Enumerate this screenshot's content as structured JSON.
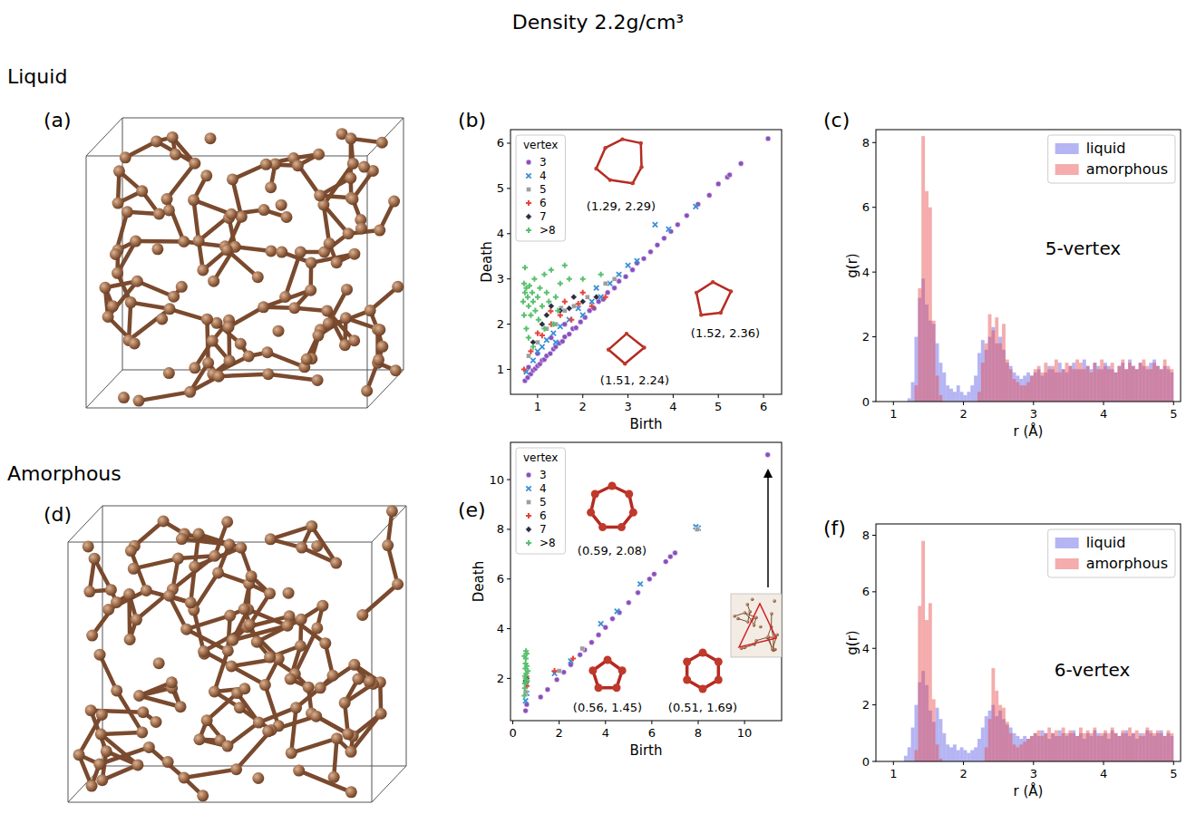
{
  "title": "Density 2.2g/cm³",
  "row_labels": [
    "Liquid",
    "Amorphous"
  ],
  "structure_panels": [
    "(a)",
    "(d)"
  ],
  "chart_data": [
    {
      "panel": "(b)",
      "type": "scatter",
      "x_label": "Birth",
      "y_label": "Death",
      "xlim": [
        0.4,
        6.4
      ],
      "ylim": [
        0.45,
        6.3
      ],
      "xticks": [
        1,
        2,
        3,
        4,
        5,
        6
      ],
      "yticks": [
        1,
        2,
        3,
        4,
        5,
        6
      ],
      "legend": "upper left",
      "legend_title": "vertex",
      "annotations": [
        "(1.29, 2.29)",
        "(1.52, 2.36)",
        "(1.51, 2.24)"
      ],
      "series": [
        {
          "name": "3",
          "color": "#8a4fbe",
          "marker": "circle",
          "x": [
            0.72,
            0.78,
            0.85,
            0.9,
            0.95,
            1.0,
            1.05,
            1.1,
            1.15,
            1.2,
            1.28,
            1.35,
            1.4,
            1.48,
            1.55,
            1.6,
            1.7,
            1.78,
            1.85,
            1.95,
            2.05,
            2.15,
            2.25,
            2.35,
            2.45,
            2.55,
            2.7,
            2.8,
            2.95,
            3.1,
            3.2,
            3.35,
            3.5,
            3.65,
            3.8,
            3.95,
            4.1,
            4.3,
            4.55,
            4.8,
            5.0,
            5.2,
            5.25,
            5.5,
            6.1,
            0.8,
            1.0,
            1.3,
            1.6
          ],
          "values": [
            0.75,
            0.82,
            0.9,
            0.98,
            1.02,
            1.08,
            1.12,
            1.2,
            1.22,
            1.3,
            1.35,
            1.45,
            1.5,
            1.58,
            1.62,
            1.72,
            1.78,
            1.9,
            1.92,
            2.05,
            2.15,
            2.3,
            2.35,
            2.5,
            2.55,
            2.7,
            2.8,
            2.95,
            3.05,
            3.2,
            3.35,
            3.45,
            3.6,
            3.75,
            3.9,
            4.05,
            4.2,
            4.4,
            4.65,
            4.85,
            5.1,
            5.25,
            5.3,
            5.55,
            6.1,
            1.05,
            1.35,
            1.7,
            2.0
          ]
        },
        {
          "name": "4",
          "color": "#3a8fd8",
          "marker": "x",
          "x": [
            0.75,
            0.9,
            1.0,
            1.1,
            1.2,
            1.35,
            1.5,
            1.7,
            1.9,
            2.0,
            2.2,
            2.4,
            2.6,
            2.8,
            3.0,
            3.2,
            3.6,
            3.9,
            4.5,
            2.3,
            1.4
          ],
          "values": [
            0.95,
            1.2,
            1.4,
            1.5,
            1.65,
            1.8,
            1.95,
            2.1,
            2.35,
            2.2,
            2.5,
            2.6,
            2.9,
            3.1,
            3.3,
            3.4,
            4.2,
            4.1,
            4.6,
            2.8,
            1.6
          ]
        },
        {
          "name": "5",
          "color": "#9e9e9e",
          "marker": "square",
          "x": [
            0.8,
            1.0,
            1.2,
            1.52,
            1.6,
            1.8,
            2.1,
            2.5,
            1.4,
            2.7
          ],
          "values": [
            1.3,
            1.6,
            1.9,
            2.36,
            2.3,
            2.4,
            2.6,
            2.9,
            2.0,
            3.0
          ]
        },
        {
          "name": "6",
          "color": "#e5443a",
          "marker": "plus",
          "x": [
            0.7,
            0.85,
            1.0,
            1.1,
            1.3,
            1.5,
            1.6,
            1.75,
            1.9,
            2.0,
            2.2,
            2.5,
            1.29
          ],
          "values": [
            1.0,
            1.4,
            1.8,
            1.75,
            2.0,
            2.2,
            2.5,
            2.1,
            2.45,
            2.7,
            2.4,
            2.6,
            2.29
          ]
        },
        {
          "name": "7",
          "color": "#2c2c44",
          "marker": "diamond",
          "x": [
            1.1,
            1.3,
            1.5,
            1.7,
            1.8,
            2.0,
            2.3,
            0.9,
            1.2
          ],
          "values": [
            2.0,
            2.4,
            2.3,
            2.35,
            2.6,
            2.5,
            2.6,
            1.6,
            2.2
          ]
        },
        {
          "name": ">8",
          "color": "#58c06e",
          "marker": "plus",
          "x": [
            0.68,
            0.7,
            0.72,
            0.75,
            0.78,
            0.8,
            0.82,
            0.85,
            0.88,
            0.9,
            0.93,
            0.95,
            1.0,
            1.02,
            1.05,
            1.1,
            1.15,
            1.2,
            1.25,
            1.3,
            1.35,
            1.4,
            1.5,
            1.6,
            1.7,
            0.75,
            0.7,
            0.8,
            0.9,
            0.72,
            1.15,
            1.45,
            2.0,
            2.4
          ],
          "values": [
            2.5,
            2.9,
            2.7,
            2.8,
            2.6,
            2.4,
            2.85,
            2.2,
            2.7,
            2.5,
            3.0,
            2.3,
            2.6,
            2.1,
            2.8,
            2.4,
            3.1,
            2.7,
            2.5,
            3.2,
            2.0,
            2.6,
            2.9,
            3.3,
            3.0,
            1.9,
            2.2,
            1.7,
            1.5,
            3.25,
            1.9,
            2.3,
            3.0,
            3.1
          ]
        }
      ]
    },
    {
      "panel": "(c)",
      "type": "histogram",
      "title": "5-vertex",
      "x_label": "r (Å)",
      "y_label": "g(r)",
      "xlim": [
        0.75,
        5.1
      ],
      "ylim": [
        0,
        8.4
      ],
      "xticks": [
        1,
        2,
        3,
        4,
        5
      ],
      "yticks": [
        0,
        2,
        4,
        6,
        8
      ],
      "legend": "upper right",
      "bins": [
        1,
        1.05,
        1.1,
        1.15,
        1.2,
        1.25,
        1.3,
        1.35,
        1.4,
        1.45,
        1.5,
        1.55,
        1.6,
        1.65,
        1.7,
        1.75,
        1.8,
        1.85,
        1.9,
        1.95,
        2,
        2.05,
        2.1,
        2.15,
        2.2,
        2.25,
        2.3,
        2.35,
        2.4,
        2.45,
        2.5,
        2.55,
        2.6,
        2.65,
        2.7,
        2.75,
        2.8,
        2.85,
        2.9,
        2.95,
        3,
        3.05,
        3.1,
        3.15,
        3.2,
        3.25,
        3.3,
        3.35,
        3.4,
        3.45,
        3.5,
        3.55,
        3.6,
        3.65,
        3.7,
        3.75,
        3.8,
        3.85,
        3.9,
        3.95,
        4,
        4.05,
        4.1,
        4.15,
        4.2,
        4.25,
        4.3,
        4.35,
        4.4,
        4.45,
        4.5,
        4.55,
        4.6,
        4.65,
        4.7,
        4.75,
        4.8,
        4.85,
        4.9,
        4.95,
        5
      ],
      "series": [
        {
          "name": "liquid",
          "color": "#5a5ae6",
          "values": [
            0,
            0,
            0,
            0,
            0.1,
            0.6,
            2.0,
            3.2,
            3.8,
            3.0,
            2.5,
            2.4,
            1.8,
            1.2,
            0.9,
            0.5,
            0.4,
            0.3,
            0.5,
            0.3,
            0.2,
            0.3,
            0.5,
            0.8,
            1.5,
            1.9,
            1.6,
            2.0,
            2.3,
            1.8,
            2.0,
            1.6,
            1.2,
            1.1,
            0.9,
            0.8,
            0.7,
            0.8,
            0.9,
            0.8,
            0.9,
            1.0,
            0.8,
            0.9,
            1.1,
            1.0,
            0.9,
            1.2,
            1.0,
            0.9,
            1.1,
            1.2,
            1.0,
            1.0,
            1.3,
            1.1,
            1.0,
            1.2,
            1.1,
            1.0,
            1.2,
            1.1,
            1.0,
            0.9,
            1.1,
            1.2,
            1.0,
            1.3,
            1.1,
            1.0,
            1.2,
            1.1,
            1.0,
            1.2,
            1.3,
            1.1,
            1.0,
            1.1,
            1.0,
            0.9
          ]
        },
        {
          "name": "amorphous",
          "color": "#e84848",
          "values": [
            0,
            0,
            0,
            0,
            0,
            0,
            0.5,
            3.5,
            8.2,
            6.5,
            6.0,
            2.5,
            0.8,
            0.2,
            0,
            0,
            0,
            0,
            0,
            0,
            0,
            0,
            0,
            0,
            0.3,
            1.2,
            1.8,
            2.7,
            2.2,
            2.6,
            1.8,
            2.4,
            1.3,
            1.0,
            0.7,
            0.6,
            0.5,
            0.5,
            0.6,
            0.8,
            1.0,
            1.1,
            0.9,
            1.2,
            1.0,
            1.1,
            1.3,
            0.9,
            1.0,
            1.2,
            1.1,
            1.0,
            1.3,
            1.2,
            1.0,
            1.1,
            0.9,
            1.2,
            1.0,
            1.3,
            1.1,
            1.0,
            1.2,
            0.9,
            1.1,
            1.3,
            1.0,
            1.2,
            1.1,
            1.0,
            1.2,
            1.3,
            1.1,
            1.0,
            1.2,
            1.1,
            1.0,
            1.3,
            1.1,
            1.0
          ]
        }
      ]
    },
    {
      "panel": "(e)",
      "type": "scatter",
      "x_label": "Birth",
      "y_label": "Death",
      "xlim": [
        -0.1,
        11.6
      ],
      "ylim": [
        0.3,
        11.5
      ],
      "xticks": [
        0,
        2,
        4,
        6,
        8,
        10
      ],
      "yticks": [
        2,
        4,
        6,
        8,
        10
      ],
      "legend": "upper left",
      "legend_title": "vertex",
      "annotations": [
        "(0.59, 2.08)",
        "(0.56, 1.45)",
        "(0.51, 1.69)"
      ],
      "series": [
        {
          "name": "3",
          "color": "#8a4fbe",
          "marker": "circle",
          "x": [
            0.55,
            0.6,
            1.2,
            1.5,
            1.9,
            2.2,
            2.5,
            2.9,
            3.1,
            3.4,
            3.7,
            4.0,
            4.3,
            4.6,
            5.0,
            5.4,
            5.9,
            6.1,
            6.6,
            6.8,
            7.0,
            11.0
          ],
          "values": [
            0.7,
            0.95,
            1.25,
            1.55,
            1.95,
            2.25,
            2.55,
            2.95,
            3.15,
            3.45,
            3.75,
            4.05,
            4.4,
            4.65,
            5.05,
            5.45,
            6.0,
            6.2,
            6.7,
            6.9,
            7.05,
            11.0
          ]
        },
        {
          "name": "4",
          "color": "#3a8fd8",
          "marker": "x",
          "x": [
            0.55,
            0.6,
            1.8,
            2.5,
            3.8,
            4.5,
            5.5,
            7.9,
            8.0
          ],
          "values": [
            1.1,
            1.4,
            2.2,
            2.7,
            4.2,
            4.7,
            5.8,
            8.1,
            8.05
          ]
        },
        {
          "name": "5",
          "color": "#9e9e9e",
          "marker": "square",
          "x": [
            0.55,
            0.58,
            2.0,
            3.0,
            7.95
          ],
          "values": [
            1.45,
            1.7,
            2.3,
            3.2,
            8.0
          ]
        },
        {
          "name": "6",
          "color": "#e5443a",
          "marker": "plus",
          "x": [
            0.56,
            0.6,
            0.59,
            1.8,
            2.6
          ],
          "values": [
            1.8,
            1.7,
            2.08,
            2.3,
            2.8
          ]
        },
        {
          "name": "7",
          "color": "#2c2c44",
          "marker": "diamond",
          "x": [
            0.55,
            0.6,
            0.58
          ],
          "values": [
            1.9,
            2.0,
            1.85
          ]
        },
        {
          "name": ">8",
          "color": "#58c06e",
          "marker": "plus",
          "x": [
            0.5,
            0.52,
            0.53,
            0.54,
            0.55,
            0.56,
            0.57,
            0.58,
            0.6,
            0.62,
            0.55,
            0.5,
            0.6,
            0.65,
            0.52
          ],
          "values": [
            1.3,
            1.6,
            2.1,
            2.4,
            2.6,
            2.8,
            3.1,
            2.2,
            2.5,
            1.9,
            2.0,
            2.9,
            3.0,
            2.3,
            1.8
          ]
        }
      ]
    },
    {
      "panel": "(f)",
      "type": "histogram",
      "title": "6-vertex",
      "x_label": "r (Å)",
      "y_label": "g(r)",
      "xlim": [
        0.75,
        5.1
      ],
      "ylim": [
        0,
        8.4
      ],
      "xticks": [
        1,
        2,
        3,
        4,
        5
      ],
      "yticks": [
        0,
        2,
        4,
        6,
        8
      ],
      "legend": "upper right",
      "bins": [
        1,
        1.05,
        1.1,
        1.15,
        1.2,
        1.25,
        1.3,
        1.35,
        1.4,
        1.45,
        1.5,
        1.55,
        1.6,
        1.65,
        1.7,
        1.75,
        1.8,
        1.85,
        1.9,
        1.95,
        2,
        2.05,
        2.1,
        2.15,
        2.2,
        2.25,
        2.3,
        2.35,
        2.4,
        2.45,
        2.5,
        2.55,
        2.6,
        2.65,
        2.7,
        2.75,
        2.8,
        2.85,
        2.9,
        2.95,
        3,
        3.05,
        3.1,
        3.15,
        3.2,
        3.25,
        3.3,
        3.35,
        3.4,
        3.45,
        3.5,
        3.55,
        3.6,
        3.65,
        3.7,
        3.75,
        3.8,
        3.85,
        3.9,
        3.95,
        4,
        4.05,
        4.1,
        4.15,
        4.2,
        4.25,
        4.3,
        4.35,
        4.4,
        4.45,
        4.5,
        4.55,
        4.6,
        4.65,
        4.7,
        4.75,
        4.8,
        4.85,
        4.9,
        4.95,
        5
      ],
      "series": [
        {
          "name": "liquid",
          "color": "#5a5ae6",
          "values": [
            0,
            0,
            0,
            0.2,
            0.5,
            1.2,
            2.0,
            2.8,
            3.2,
            2.7,
            1.8,
            1.4,
            1.9,
            1.5,
            1.0,
            0.6,
            0.5,
            0.6,
            0.4,
            0.5,
            0.4,
            0.3,
            0.4,
            0.5,
            0.8,
            1.2,
            1.6,
            1.8,
            2.0,
            1.6,
            1.8,
            1.5,
            1.3,
            1.2,
            1.0,
            0.9,
            0.8,
            0.9,
            0.8,
            0.9,
            1.0,
            0.9,
            1.1,
            1.0,
            0.8,
            1.0,
            0.9,
            1.1,
            1.0,
            0.9,
            1.0,
            1.1,
            0.9,
            1.0,
            0.8,
            1.0,
            0.9,
            1.1,
            1.0,
            0.9,
            1.0,
            0.8,
            1.1,
            1.0,
            0.9,
            1.0,
            1.1,
            0.9,
            1.0,
            0.8,
            1.0,
            0.9,
            1.1,
            1.0,
            0.9,
            1.0,
            1.1,
            0.9,
            1.0,
            0.9
          ]
        },
        {
          "name": "amorphous",
          "color": "#e84848",
          "values": [
            0,
            0,
            0,
            0,
            0,
            0,
            0.4,
            5.5,
            7.8,
            5.0,
            5.6,
            2.2,
            0.6,
            0.1,
            0,
            0,
            0,
            0,
            0,
            0,
            0,
            0,
            0,
            0,
            0,
            0,
            0.5,
            1.5,
            3.3,
            2.5,
            2.0,
            1.9,
            1.4,
            1.0,
            0.6,
            0.5,
            0.6,
            0.7,
            0.8,
            0.9,
            1.0,
            1.1,
            0.9,
            1.0,
            1.2,
            1.0,
            1.1,
            0.9,
            1.2,
            1.0,
            1.1,
            1.0,
            0.9,
            1.2,
            1.0,
            1.1,
            1.0,
            1.2,
            0.9,
            1.0,
            1.1,
            1.0,
            1.2,
            1.0,
            0.9,
            1.1,
            1.0,
            1.2,
            1.0,
            1.1,
            0.9,
            1.0,
            1.2,
            1.1,
            1.0,
            1.1,
            1.0,
            0.9,
            1.1,
            1.0
          ]
        }
      ]
    }
  ]
}
